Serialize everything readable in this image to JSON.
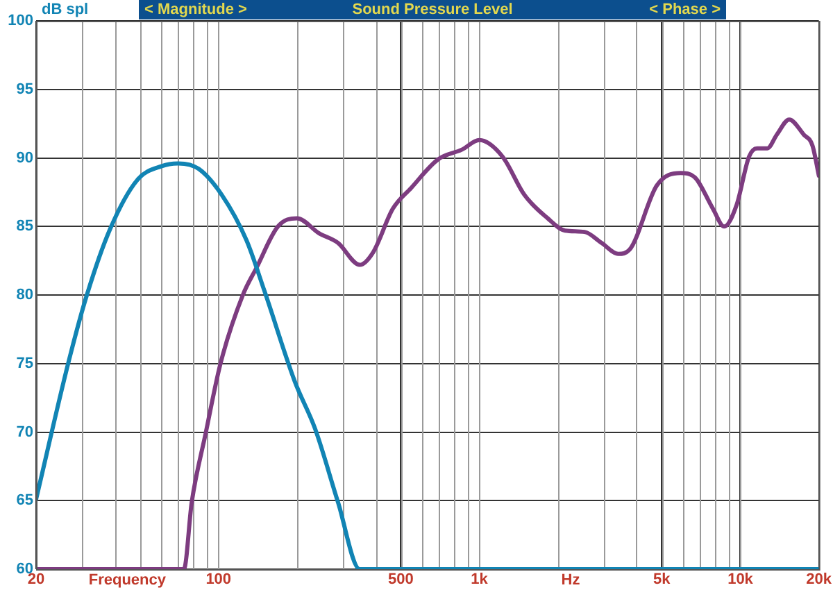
{
  "chart_data": {
    "type": "line",
    "title": "Sound Pressure Level",
    "ylabel": "dB spl",
    "xlabel": "Frequency",
    "annotations": [
      "< Magnitude >",
      "< Phase >",
      "Hz"
    ],
    "log": "x",
    "grid": true,
    "marker": "none",
    "line_style": "solid",
    "xlim": [
      20,
      20000
    ],
    "ylim": [
      60,
      100
    ],
    "xticks": [
      20,
      100,
      500,
      {
        "value": 1000,
        "label": "1k"
      },
      {
        "value": 5000,
        "label": "5k"
      },
      {
        "value": 10000,
        "label": "10k"
      },
      {
        "value": 20000,
        "label": "20k"
      }
    ],
    "yticks": [
      60,
      65,
      70,
      75,
      80,
      85,
      90,
      95,
      100
    ],
    "series": [
      {
        "color": "#1184b4",
        "x": [
          20,
          26.7,
          31.3,
          38.4,
          48.9,
          60.6,
          70.2,
          84,
          103,
          128,
          150,
          196,
          235,
          287,
          348,
          1000,
          20000
        ],
        "values": [
          65.1,
          75.2,
          80,
          84.8,
          88.4,
          89.4,
          89.6,
          89.2,
          87.3,
          84,
          80.3,
          73.7,
          70.2,
          64.9,
          60,
          60,
          60
        ]
      },
      {
        "color": "#7d3c80",
        "x": [
          20,
          73.7,
          79,
          89.3,
          101.8,
          124,
          140,
          169,
          200,
          243,
          287,
          348,
          391,
          466,
          547,
          695,
          856,
          1000,
          1226,
          1488,
          1826,
          2130,
          2530,
          2940,
          3410,
          3760,
          4790,
          5900,
          6680,
          7850,
          8670,
          9690,
          10800,
          11600,
          12700,
          13800,
          15400,
          17500,
          18900,
          20000
        ],
        "values": [
          60,
          60,
          64.9,
          69.9,
          75,
          80,
          82,
          85,
          85.6,
          84.5,
          83.8,
          82.2,
          83.1,
          86.3,
          87.8,
          89.9,
          90.6,
          91.3,
          90.1,
          87.3,
          85.6,
          84.7,
          84.6,
          83.8,
          83,
          83.3,
          88,
          88.9,
          88.6,
          86.3,
          85,
          86.6,
          90.1,
          90.7,
          90.7,
          91.7,
          92.8,
          91.7,
          90.9,
          88.7
        ]
      }
    ]
  }
}
